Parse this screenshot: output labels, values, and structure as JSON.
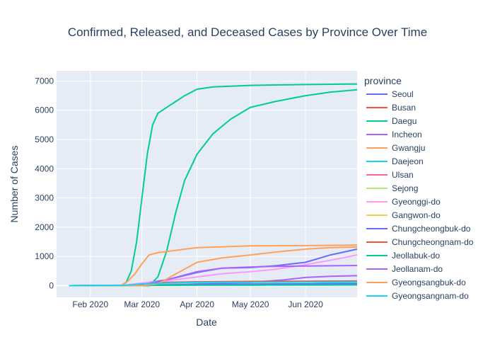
{
  "chart_data": {
    "type": "line",
    "title": "Confirmed, Released, and Deceased Cases by Province Over Time",
    "xlabel": "Date",
    "ylabel": "Number of Cases",
    "x_range": [
      "2020-01-13",
      "2020-06-30"
    ],
    "x_ticks": [
      {
        "date": "2020-02-01",
        "label": "Feb 2020"
      },
      {
        "date": "2020-03-01",
        "label": "Mar 2020"
      },
      {
        "date": "2020-04-01",
        "label": "Apr 2020"
      },
      {
        "date": "2020-05-01",
        "label": "May 2020"
      },
      {
        "date": "2020-06-01",
        "label": "Jun 2020"
      }
    ],
    "ylim": [
      -400,
      7350
    ],
    "y_ticks": [
      0,
      1000,
      2000,
      3000,
      4000,
      5000,
      6000,
      7000
    ],
    "grid": true,
    "legend": {
      "title": "province",
      "placement": "right"
    },
    "series": [
      {
        "name": "Seoul",
        "color": "#636efa",
        "points": [
          [
            "2020-01-20",
            0
          ],
          [
            "2020-02-20",
            10
          ],
          [
            "2020-03-01",
            80
          ],
          [
            "2020-03-15",
            200
          ],
          [
            "2020-04-01",
            450
          ],
          [
            "2020-04-15",
            600
          ],
          [
            "2020-05-01",
            620
          ],
          [
            "2020-05-15",
            680
          ],
          [
            "2020-06-01",
            800
          ],
          [
            "2020-06-15",
            1050
          ],
          [
            "2020-06-30",
            1250
          ]
        ]
      },
      {
        "name": "Busan",
        "color": "#ef553b",
        "points": [
          [
            "2020-01-20",
            0
          ],
          [
            "2020-02-20",
            10
          ],
          [
            "2020-03-01",
            80
          ],
          [
            "2020-03-15",
            110
          ],
          [
            "2020-04-01",
            125
          ],
          [
            "2020-05-01",
            135
          ],
          [
            "2020-06-01",
            145
          ],
          [
            "2020-06-30",
            150
          ]
        ]
      },
      {
        "name": "Daegu",
        "color": "#00cc96",
        "points": [
          [
            "2020-01-20",
            0
          ],
          [
            "2020-02-18",
            0
          ],
          [
            "2020-02-21",
            100
          ],
          [
            "2020-02-24",
            500
          ],
          [
            "2020-02-27",
            1500
          ],
          [
            "2020-03-01",
            3000
          ],
          [
            "2020-03-04",
            4500
          ],
          [
            "2020-03-07",
            5500
          ],
          [
            "2020-03-10",
            5900
          ],
          [
            "2020-03-15",
            6100
          ],
          [
            "2020-03-20",
            6300
          ],
          [
            "2020-03-25",
            6500
          ],
          [
            "2020-04-01",
            6720
          ],
          [
            "2020-04-10",
            6800
          ],
          [
            "2020-05-01",
            6850
          ],
          [
            "2020-06-01",
            6880
          ],
          [
            "2020-06-30",
            6900
          ]
        ]
      },
      {
        "name": "Daegu",
        "color": "#00cc96",
        "points": [
          [
            "2020-01-20",
            0
          ],
          [
            "2020-03-05",
            0
          ],
          [
            "2020-03-10",
            300
          ],
          [
            "2020-03-15",
            1200
          ],
          [
            "2020-03-20",
            2500
          ],
          [
            "2020-03-25",
            3600
          ],
          [
            "2020-04-01",
            4500
          ],
          [
            "2020-04-10",
            5200
          ],
          [
            "2020-04-20",
            5700
          ],
          [
            "2020-05-01",
            6100
          ],
          [
            "2020-05-15",
            6300
          ],
          [
            "2020-06-01",
            6500
          ],
          [
            "2020-06-15",
            6620
          ],
          [
            "2020-06-30",
            6700
          ]
        ]
      },
      {
        "name": "Incheon",
        "color": "#ab63fa",
        "points": [
          [
            "2020-01-20",
            0
          ],
          [
            "2020-02-20",
            5
          ],
          [
            "2020-03-01",
            20
          ],
          [
            "2020-03-15",
            35
          ],
          [
            "2020-04-01",
            60
          ],
          [
            "2020-05-01",
            110
          ],
          [
            "2020-05-20",
            200
          ],
          [
            "2020-06-01",
            280
          ],
          [
            "2020-06-15",
            320
          ],
          [
            "2020-06-30",
            340
          ]
        ]
      },
      {
        "name": "Gwangju",
        "color": "#ffa15a",
        "points": [
          [
            "2020-01-20",
            0
          ],
          [
            "2020-02-20",
            5
          ],
          [
            "2020-03-01",
            10
          ],
          [
            "2020-04-01",
            25
          ],
          [
            "2020-05-01",
            30
          ],
          [
            "2020-06-01",
            35
          ],
          [
            "2020-06-30",
            45
          ]
        ]
      },
      {
        "name": "Daejeon",
        "color": "#19d3f3",
        "points": [
          [
            "2020-01-20",
            0
          ],
          [
            "2020-02-20",
            5
          ],
          [
            "2020-03-01",
            15
          ],
          [
            "2020-04-01",
            35
          ],
          [
            "2020-05-01",
            45
          ],
          [
            "2020-06-01",
            50
          ],
          [
            "2020-06-30",
            120
          ]
        ]
      },
      {
        "name": "Ulsan",
        "color": "#ff6692",
        "points": [
          [
            "2020-01-20",
            0
          ],
          [
            "2020-02-20",
            5
          ],
          [
            "2020-03-01",
            20
          ],
          [
            "2020-04-01",
            40
          ],
          [
            "2020-05-01",
            45
          ],
          [
            "2020-06-01",
            50
          ],
          [
            "2020-06-30",
            55
          ]
        ]
      },
      {
        "name": "Sejong",
        "color": "#b6e880",
        "points": [
          [
            "2020-01-20",
            0
          ],
          [
            "2020-02-20",
            0
          ],
          [
            "2020-03-01",
            5
          ],
          [
            "2020-03-15",
            40
          ],
          [
            "2020-04-01",
            47
          ],
          [
            "2020-05-01",
            48
          ],
          [
            "2020-06-01",
            50
          ],
          [
            "2020-06-30",
            50
          ]
        ]
      },
      {
        "name": "Gyeonggi-do",
        "color": "#ff97ff",
        "points": [
          [
            "2020-01-20",
            0
          ],
          [
            "2020-02-20",
            20
          ],
          [
            "2020-03-01",
            90
          ],
          [
            "2020-03-15",
            170
          ],
          [
            "2020-04-01",
            300
          ],
          [
            "2020-04-15",
            410
          ],
          [
            "2020-05-01",
            480
          ],
          [
            "2020-05-15",
            560
          ],
          [
            "2020-06-01",
            720
          ],
          [
            "2020-06-15",
            870
          ],
          [
            "2020-06-30",
            1050
          ]
        ]
      },
      {
        "name": "Gangwon-do",
        "color": "#fecb52",
        "points": [
          [
            "2020-01-20",
            0
          ],
          [
            "2020-02-20",
            5
          ],
          [
            "2020-03-01",
            20
          ],
          [
            "2020-04-01",
            40
          ],
          [
            "2020-05-01",
            55
          ],
          [
            "2020-06-01",
            60
          ],
          [
            "2020-06-30",
            65
          ]
        ]
      },
      {
        "name": "Chungcheongbuk-do",
        "color": "#636efa",
        "points": [
          [
            "2020-01-20",
            0
          ],
          [
            "2020-02-20",
            5
          ],
          [
            "2020-03-01",
            15
          ],
          [
            "2020-04-01",
            45
          ],
          [
            "2020-05-01",
            55
          ],
          [
            "2020-06-01",
            60
          ],
          [
            "2020-06-30",
            65
          ]
        ]
      },
      {
        "name": "Chungcheongnam-do",
        "color": "#ef553b",
        "points": [
          [
            "2020-01-20",
            0
          ],
          [
            "2020-02-20",
            0
          ],
          [
            "2020-03-01",
            30
          ],
          [
            "2020-03-15",
            110
          ],
          [
            "2020-04-01",
            130
          ],
          [
            "2020-05-01",
            145
          ],
          [
            "2020-06-01",
            150
          ],
          [
            "2020-06-30",
            160
          ]
        ]
      },
      {
        "name": "Jeollabuk-do",
        "color": "#00cc96",
        "points": [
          [
            "2020-01-20",
            0
          ],
          [
            "2020-02-20",
            5
          ],
          [
            "2020-03-01",
            10
          ],
          [
            "2020-04-01",
            17
          ],
          [
            "2020-05-01",
            20
          ],
          [
            "2020-06-01",
            22
          ],
          [
            "2020-06-30",
            25
          ]
        ]
      },
      {
        "name": "Jeollanam-do",
        "color": "#ab63fa",
        "points": [
          [
            "2020-01-20",
            0
          ],
          [
            "2020-02-20",
            5
          ],
          [
            "2020-03-01",
            30
          ],
          [
            "2020-03-15",
            200
          ],
          [
            "2020-04-01",
            480
          ],
          [
            "2020-04-15",
            600
          ],
          [
            "2020-05-01",
            640
          ],
          [
            "2020-05-15",
            660
          ],
          [
            "2020-06-01",
            670
          ],
          [
            "2020-06-30",
            690
          ]
        ]
      },
      {
        "name": "Gyeongsangbuk-do",
        "color": "#ffa15a",
        "points": [
          [
            "2020-01-20",
            0
          ],
          [
            "2020-02-18",
            0
          ],
          [
            "2020-02-22",
            150
          ],
          [
            "2020-02-26",
            400
          ],
          [
            "2020-03-01",
            750
          ],
          [
            "2020-03-05",
            1050
          ],
          [
            "2020-03-10",
            1130
          ],
          [
            "2020-03-15",
            1170
          ],
          [
            "2020-04-01",
            1300
          ],
          [
            "2020-04-15",
            1330
          ],
          [
            "2020-05-01",
            1360
          ],
          [
            "2020-06-01",
            1370
          ],
          [
            "2020-06-30",
            1390
          ]
        ]
      },
      {
        "name": "Gyeongsangbuk-do",
        "color": "#ffa15a",
        "points": [
          [
            "2020-01-20",
            0
          ],
          [
            "2020-03-01",
            0
          ],
          [
            "2020-03-10",
            60
          ],
          [
            "2020-03-20",
            400
          ],
          [
            "2020-04-01",
            800
          ],
          [
            "2020-04-15",
            950
          ],
          [
            "2020-05-01",
            1050
          ],
          [
            "2020-05-15",
            1150
          ],
          [
            "2020-06-01",
            1250
          ],
          [
            "2020-06-15",
            1300
          ],
          [
            "2020-06-30",
            1320
          ]
        ]
      },
      {
        "name": "Gyeongsangnam-do",
        "color": "#19d3f3",
        "points": [
          [
            "2020-01-20",
            0
          ],
          [
            "2020-02-20",
            10
          ],
          [
            "2020-03-01",
            60
          ],
          [
            "2020-03-15",
            90
          ],
          [
            "2020-04-01",
            110
          ],
          [
            "2020-05-01",
            115
          ],
          [
            "2020-06-01",
            120
          ],
          [
            "2020-06-30",
            130
          ]
        ]
      }
    ],
    "legend_entries": [
      {
        "name": "Seoul",
        "color": "#636efa"
      },
      {
        "name": "Busan",
        "color": "#ef553b"
      },
      {
        "name": "Daegu",
        "color": "#00cc96"
      },
      {
        "name": "Incheon",
        "color": "#ab63fa"
      },
      {
        "name": "Gwangju",
        "color": "#ffa15a"
      },
      {
        "name": "Daejeon",
        "color": "#19d3f3"
      },
      {
        "name": "Ulsan",
        "color": "#ff6692"
      },
      {
        "name": "Sejong",
        "color": "#b6e880"
      },
      {
        "name": "Gyeonggi-do",
        "color": "#ff97ff"
      },
      {
        "name": "Gangwon-do",
        "color": "#fecb52"
      },
      {
        "name": "Chungcheongbuk-do",
        "color": "#636efa"
      },
      {
        "name": "Chungcheongnam-do",
        "color": "#ef553b"
      },
      {
        "name": "Jeollabuk-do",
        "color": "#00cc96"
      },
      {
        "name": "Jeollanam-do",
        "color": "#ab63fa"
      },
      {
        "name": "Gyeongsangbuk-do",
        "color": "#ffa15a"
      },
      {
        "name": "Gyeongsangnam-do",
        "color": "#19d3f3"
      }
    ]
  }
}
